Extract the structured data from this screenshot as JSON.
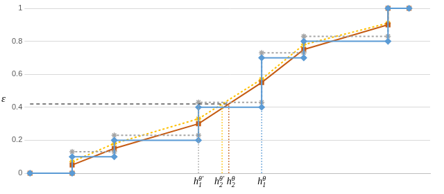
{
  "chart_data": {
    "type": "line",
    "xlim": [
      0,
      9.5
    ],
    "ylim": [
      0,
      1
    ],
    "yticks": [
      0,
      0.2,
      0.4,
      0.6,
      0.8,
      1
    ],
    "grid": true,
    "tick_labels": "y",
    "series": [
      {
        "color": "#5b9bd5",
        "marker": "diamond",
        "line_style": "solid",
        "x": [
          0,
          1,
          1,
          2,
          2,
          4,
          4,
          5.5,
          5.5,
          6.5,
          6.5,
          8.5,
          8.5,
          9
        ],
        "values": [
          0,
          0,
          0.1,
          0.1,
          0.2,
          0.2,
          0.4,
          0.4,
          0.7,
          0.7,
          0.8,
          0.8,
          1,
          1
        ]
      },
      {
        "color": "#a5a5a5",
        "marker": "star",
        "line_style": "dotted",
        "x": [
          0,
          1,
          1,
          2,
          2,
          4,
          4,
          5.5,
          5.5,
          6.5,
          6.5,
          8.5,
          8.5,
          9
        ],
        "values": [
          0,
          0,
          0.13,
          0.13,
          0.23,
          0.23,
          0.43,
          0.43,
          0.73,
          0.73,
          0.83,
          0.83,
          1,
          1
        ]
      },
      {
        "color": "#c55a11",
        "marker": "square",
        "line_style": "solid",
        "x": [
          0,
          1,
          1,
          2,
          4,
          5.5,
          6.5,
          8.5,
          8.5,
          9
        ],
        "values": [
          0,
          0,
          0.05,
          0.15,
          0.3,
          0.55,
          0.75,
          0.9,
          1,
          1
        ]
      },
      {
        "color": "#ffc000",
        "marker": "star",
        "line_style": "dotted",
        "x": [
          0,
          1,
          1,
          2,
          4,
          5.5,
          6.5,
          8.5,
          8.5,
          9
        ],
        "values": [
          0,
          0,
          0.07,
          0.18,
          0.33,
          0.57,
          0.78,
          0.91,
          1,
          1
        ]
      }
    ],
    "threshold": {
      "value": 0.42,
      "label": "ε",
      "x_end": 4.72
    },
    "annotations": [
      {
        "x": 4,
        "y": 0.43,
        "base": "h",
        "sub": "1",
        "sup": "θ′",
        "color": "#a5a5a5"
      },
      {
        "x": 4.56,
        "y": 0.42,
        "base": "h",
        "sub": "2",
        "sup": "θ′",
        "color": "#ffc000"
      },
      {
        "x": 4.72,
        "y": 0.42,
        "base": "h",
        "sub": "2",
        "sup": "θ",
        "color": "#c55a11"
      },
      {
        "x": 5.5,
        "y": 0.55,
        "base": "h",
        "sub": "1",
        "sup": "θ",
        "color": "#5b9bd5"
      }
    ]
  }
}
